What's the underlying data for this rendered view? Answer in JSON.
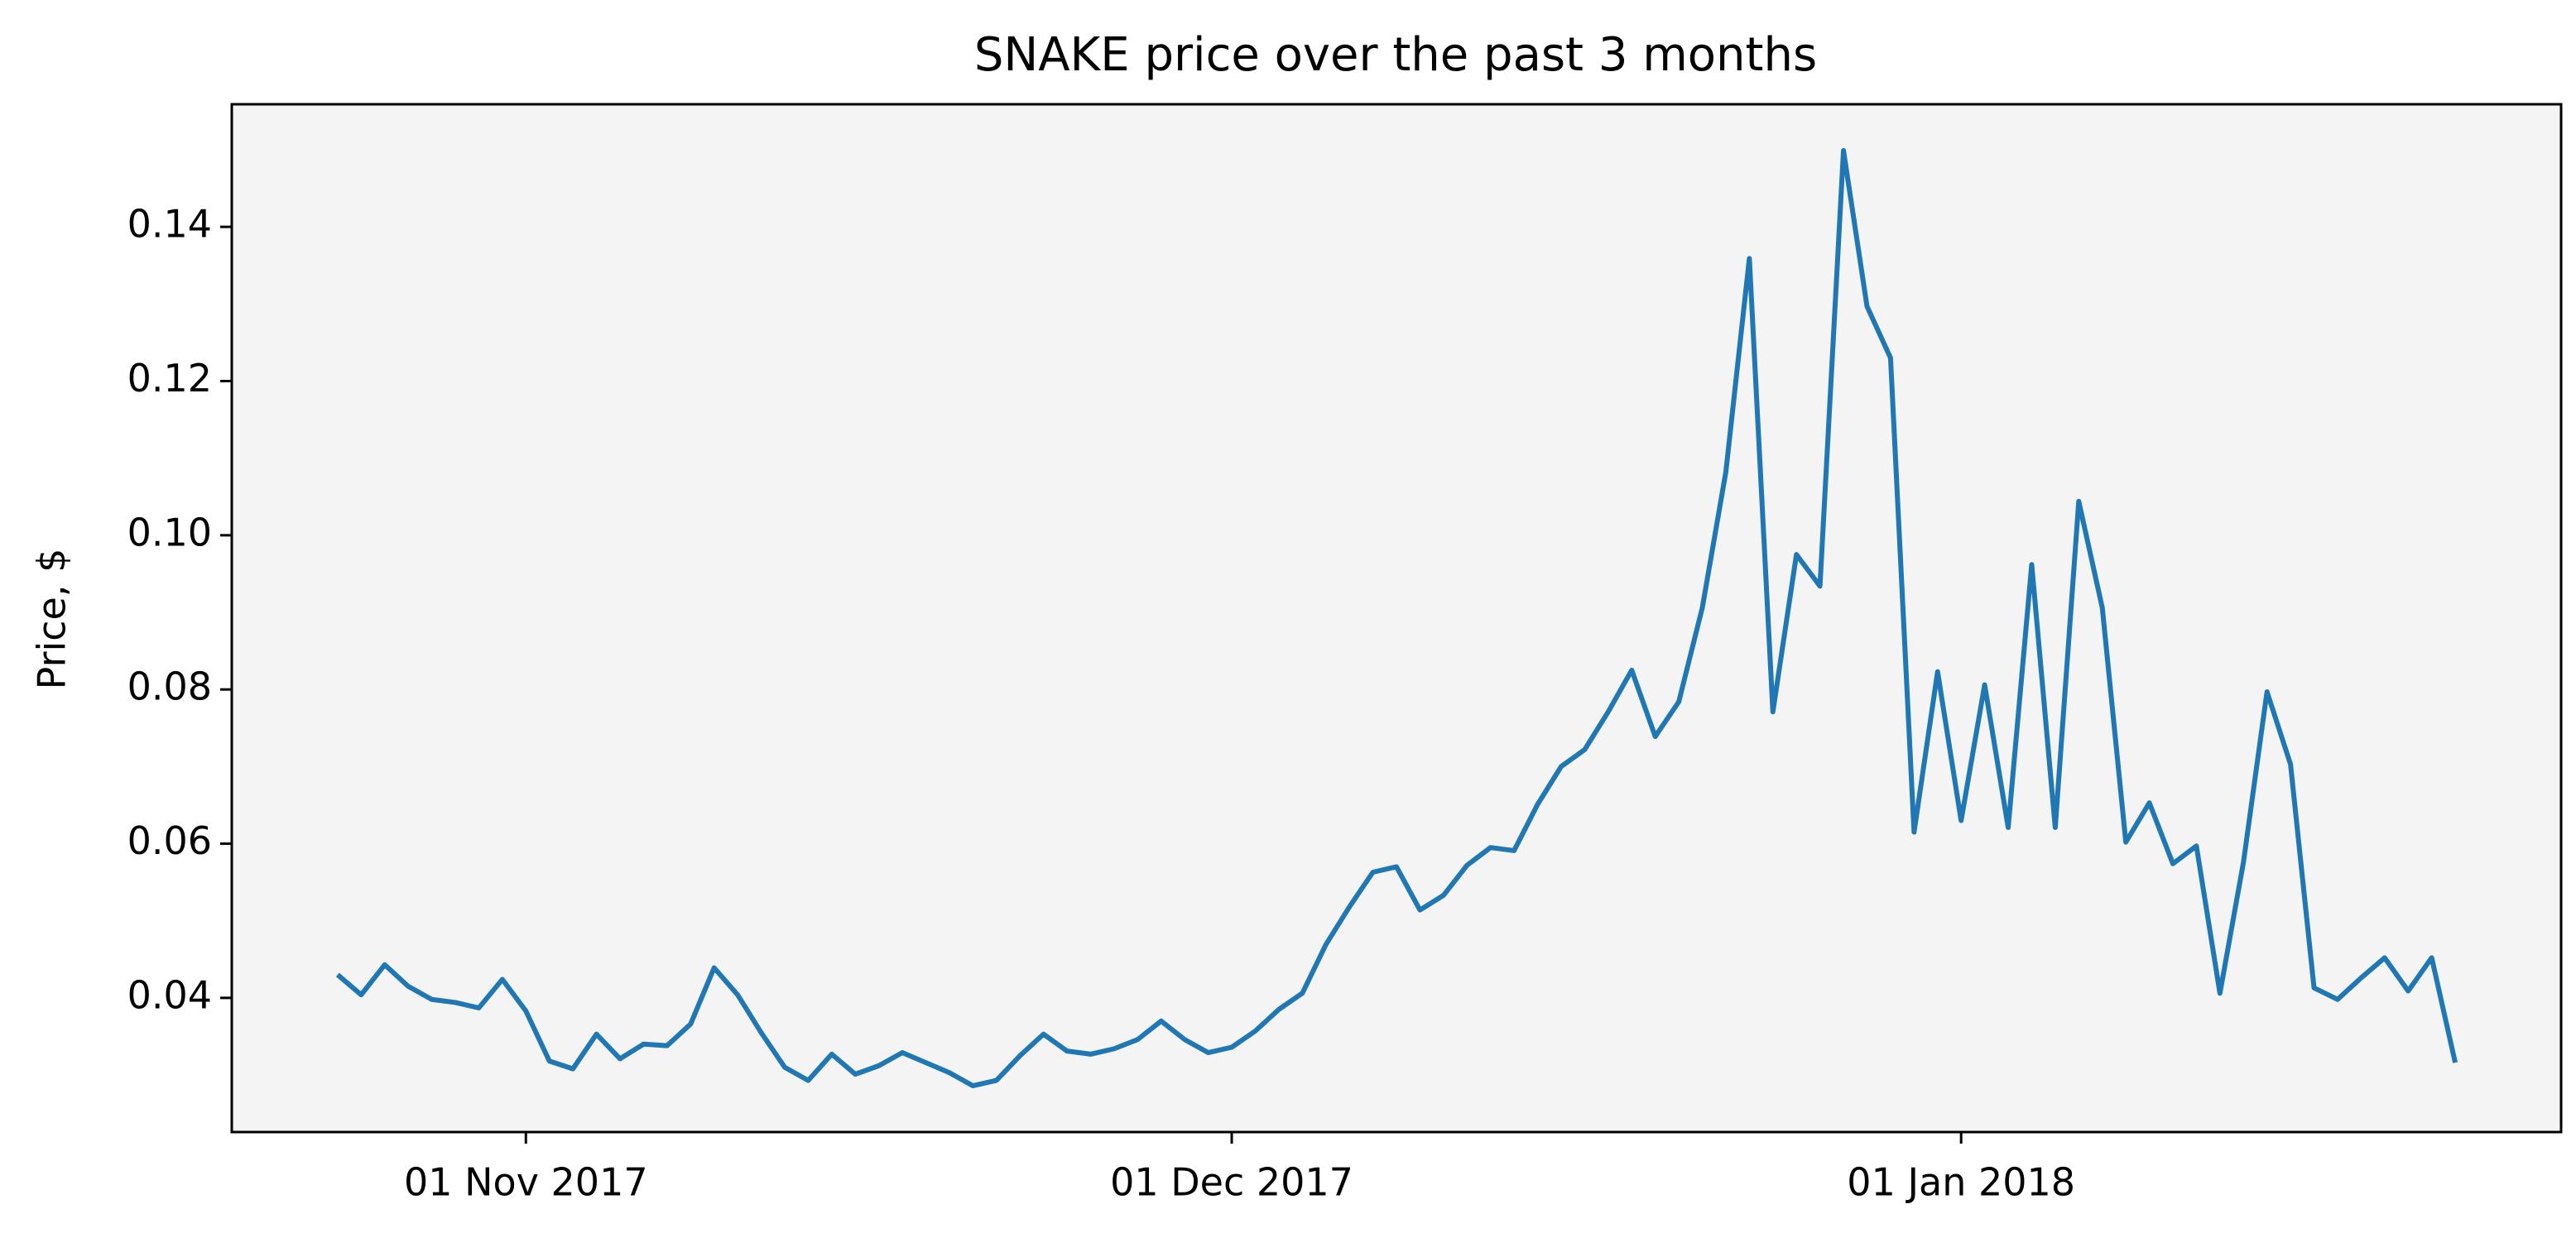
{
  "chart_data": {
    "type": "line",
    "title": "SNAKE price over the past 3 months",
    "y_label": "Price, $",
    "color": "#1f77b4",
    "background": "#f4f4f4",
    "x": [
      "2017-10-24",
      "2017-10-25",
      "2017-10-26",
      "2017-10-27",
      "2017-10-28",
      "2017-10-29",
      "2017-10-30",
      "2017-10-31",
      "2017-11-01",
      "2017-11-02",
      "2017-11-03",
      "2017-11-04",
      "2017-11-05",
      "2017-11-06",
      "2017-11-07",
      "2017-11-08",
      "2017-11-09",
      "2017-11-10",
      "2017-11-11",
      "2017-11-12",
      "2017-11-13",
      "2017-11-14",
      "2017-11-15",
      "2017-11-16",
      "2017-11-17",
      "2017-11-18",
      "2017-11-19",
      "2017-11-20",
      "2017-11-21",
      "2017-11-22",
      "2017-11-23",
      "2017-11-24",
      "2017-11-25",
      "2017-11-26",
      "2017-11-27",
      "2017-11-28",
      "2017-11-29",
      "2017-11-30",
      "2017-12-01",
      "2017-12-02",
      "2017-12-03",
      "2017-12-04",
      "2017-12-05",
      "2017-12-06",
      "2017-12-07",
      "2017-12-08",
      "2017-12-09",
      "2017-12-10",
      "2017-12-11",
      "2017-12-12",
      "2017-12-13",
      "2017-12-14",
      "2017-12-15",
      "2017-12-16",
      "2017-12-17",
      "2017-12-18",
      "2017-12-19",
      "2017-12-20",
      "2017-12-21",
      "2017-12-22",
      "2017-12-23",
      "2017-12-24",
      "2017-12-25",
      "2017-12-26",
      "2017-12-27",
      "2017-12-28",
      "2017-12-29",
      "2017-12-30",
      "2017-12-31",
      "2018-01-01",
      "2018-01-02",
      "2018-01-03",
      "2018-01-04",
      "2018-01-05",
      "2018-01-06",
      "2018-01-07",
      "2018-01-08",
      "2018-01-09",
      "2018-01-10",
      "2018-01-11",
      "2018-01-12",
      "2018-01-13",
      "2018-01-14",
      "2018-01-15",
      "2018-01-16",
      "2018-01-17",
      "2018-01-18",
      "2018-01-19",
      "2018-01-20",
      "2018-01-21",
      "2018-01-22"
    ],
    "values": [
      0.043,
      0.0404,
      0.0443,
      0.0415,
      0.0398,
      0.0394,
      0.0387,
      0.0424,
      0.0383,
      0.0318,
      0.0308,
      0.0353,
      0.0321,
      0.034,
      0.0338,
      0.0366,
      0.0439,
      0.0404,
      0.0355,
      0.031,
      0.0293,
      0.0327,
      0.0301,
      0.0312,
      0.0329,
      0.0316,
      0.0303,
      0.0286,
      0.0293,
      0.0325,
      0.0353,
      0.0331,
      0.0327,
      0.0334,
      0.0346,
      0.037,
      0.0346,
      0.0329,
      0.0336,
      0.0357,
      0.0385,
      0.0406,
      0.0469,
      0.0518,
      0.0563,
      0.057,
      0.0514,
      0.0533,
      0.0572,
      0.0595,
      0.0591,
      0.0651,
      0.07,
      0.0722,
      0.0771,
      0.0825,
      0.0739,
      0.0784,
      0.0906,
      0.1082,
      0.1359,
      0.0771,
      0.0975,
      0.0934,
      0.1499,
      0.1297,
      0.123,
      0.0615,
      0.0823,
      0.063,
      0.0806,
      0.0621,
      0.0962,
      0.0621,
      0.1044,
      0.0906,
      0.0602,
      0.0653,
      0.0574,
      0.0597,
      0.0406,
      0.0576,
      0.0797,
      0.0703,
      0.0413,
      0.0398,
      0.0426,
      0.0452,
      0.0409,
      0.0452,
      0.0316
    ],
    "xlim": [
      "2017-10-19T12:00:00",
      "2018-01-26T12:00:00"
    ],
    "xticks": [
      {
        "value": "2017-11-01",
        "label": "01 Nov 2017"
      },
      {
        "value": "2017-12-01",
        "label": "01 Dec 2017"
      },
      {
        "value": "2018-01-01",
        "label": "01 Jan 2018"
      }
    ],
    "ylim": [
      0.0226,
      0.1559
    ],
    "yticks": [
      0.04,
      0.06,
      0.08,
      {
        "value": 0.1,
        "label": "0.10"
      },
      0.12,
      0.14
    ]
  }
}
